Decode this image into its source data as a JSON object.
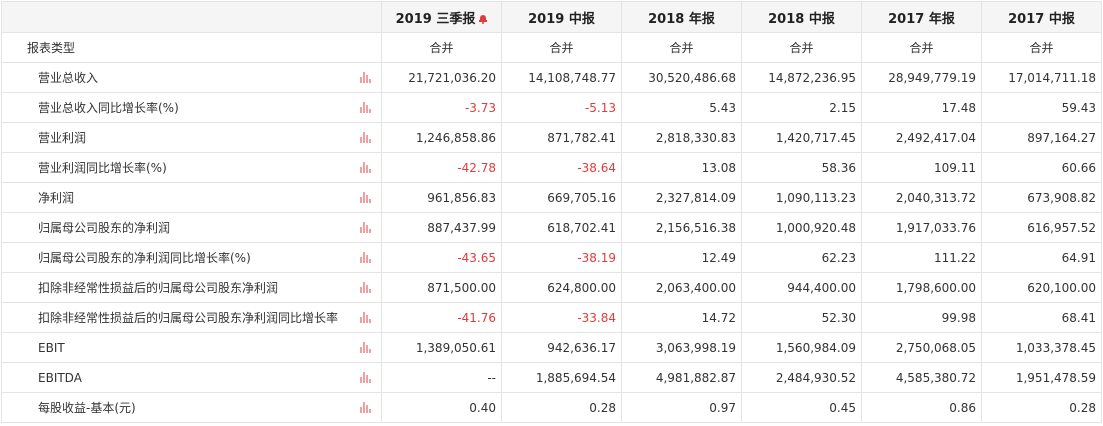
{
  "header": {
    "periods": [
      "2019 三季报",
      "2019 中报",
      "2018 年报",
      "2018 中报",
      "2017 年报",
      "2017 中报"
    ],
    "alert_icon": "bell-icon",
    "alert_color": "#e03c3c"
  },
  "rows": [
    {
      "label": "报表类型",
      "values": [
        "合并",
        "合并",
        "合并",
        "合并",
        "合并",
        "合并"
      ]
    },
    {
      "label": "营业总收入",
      "values": [
        "21,721,036.20",
        "14,108,748.77",
        "30,520,486.68",
        "14,872,236.95",
        "28,949,779.19",
        "17,014,711.18"
      ]
    },
    {
      "label": "营业总收入同比增长率(%)",
      "values": [
        "-3.73",
        "-5.13",
        "5.43",
        "2.15",
        "17.48",
        "59.43"
      ]
    },
    {
      "label": "营业利润",
      "values": [
        "1,246,858.86",
        "871,782.41",
        "2,818,330.83",
        "1,420,717.45",
        "2,492,417.04",
        "897,164.27"
      ]
    },
    {
      "label": "营业利润同比增长率(%)",
      "values": [
        "-42.78",
        "-38.64",
        "13.08",
        "58.36",
        "109.11",
        "60.66"
      ]
    },
    {
      "label": "净利润",
      "values": [
        "961,856.83",
        "669,705.16",
        "2,327,814.09",
        "1,090,113.23",
        "2,040,313.72",
        "673,908.82"
      ]
    },
    {
      "label": "归属母公司股东的净利润",
      "values": [
        "887,437.99",
        "618,702.41",
        "2,156,516.38",
        "1,000,920.48",
        "1,917,033.76",
        "616,957.52"
      ]
    },
    {
      "label": "归属母公司股东的净利润同比增长率(%)",
      "values": [
        "-43.65",
        "-38.19",
        "12.49",
        "62.23",
        "111.22",
        "64.91"
      ]
    },
    {
      "label": "扣除非经常性损益后的归属母公司股东净利润",
      "values": [
        "871,500.00",
        "624,800.00",
        "2,063,400.00",
        "944,400.00",
        "1,798,600.00",
        "620,100.00"
      ]
    },
    {
      "label": "扣除非经常性损益后的归属母公司股东净利润同比增长率",
      "values": [
        "-41.76",
        "-33.84",
        "14.72",
        "52.30",
        "99.98",
        "68.41"
      ]
    },
    {
      "label": "EBIT",
      "values": [
        "1,389,050.61",
        "942,636.17",
        "3,063,998.19",
        "1,560,984.09",
        "2,750,068.05",
        "1,033,378.45"
      ]
    },
    {
      "label": "EBITDA",
      "values": [
        "--",
        "1,885,694.54",
        "4,981,882.87",
        "2,484,930.52",
        "4,585,380.72",
        "1,951,478.59"
      ]
    },
    {
      "label": "每股收益-基本(元)",
      "values": [
        "0.40",
        "0.28",
        "0.97",
        "0.45",
        "0.86",
        "0.28"
      ]
    }
  ],
  "colors": {
    "negative": "#e03c3c",
    "header_bg": "#f5f5f5",
    "border": "#e4e4e4",
    "chart_icon": "#f0a0a0"
  },
  "icons": {
    "row_chart": "bar-chart-icon"
  }
}
